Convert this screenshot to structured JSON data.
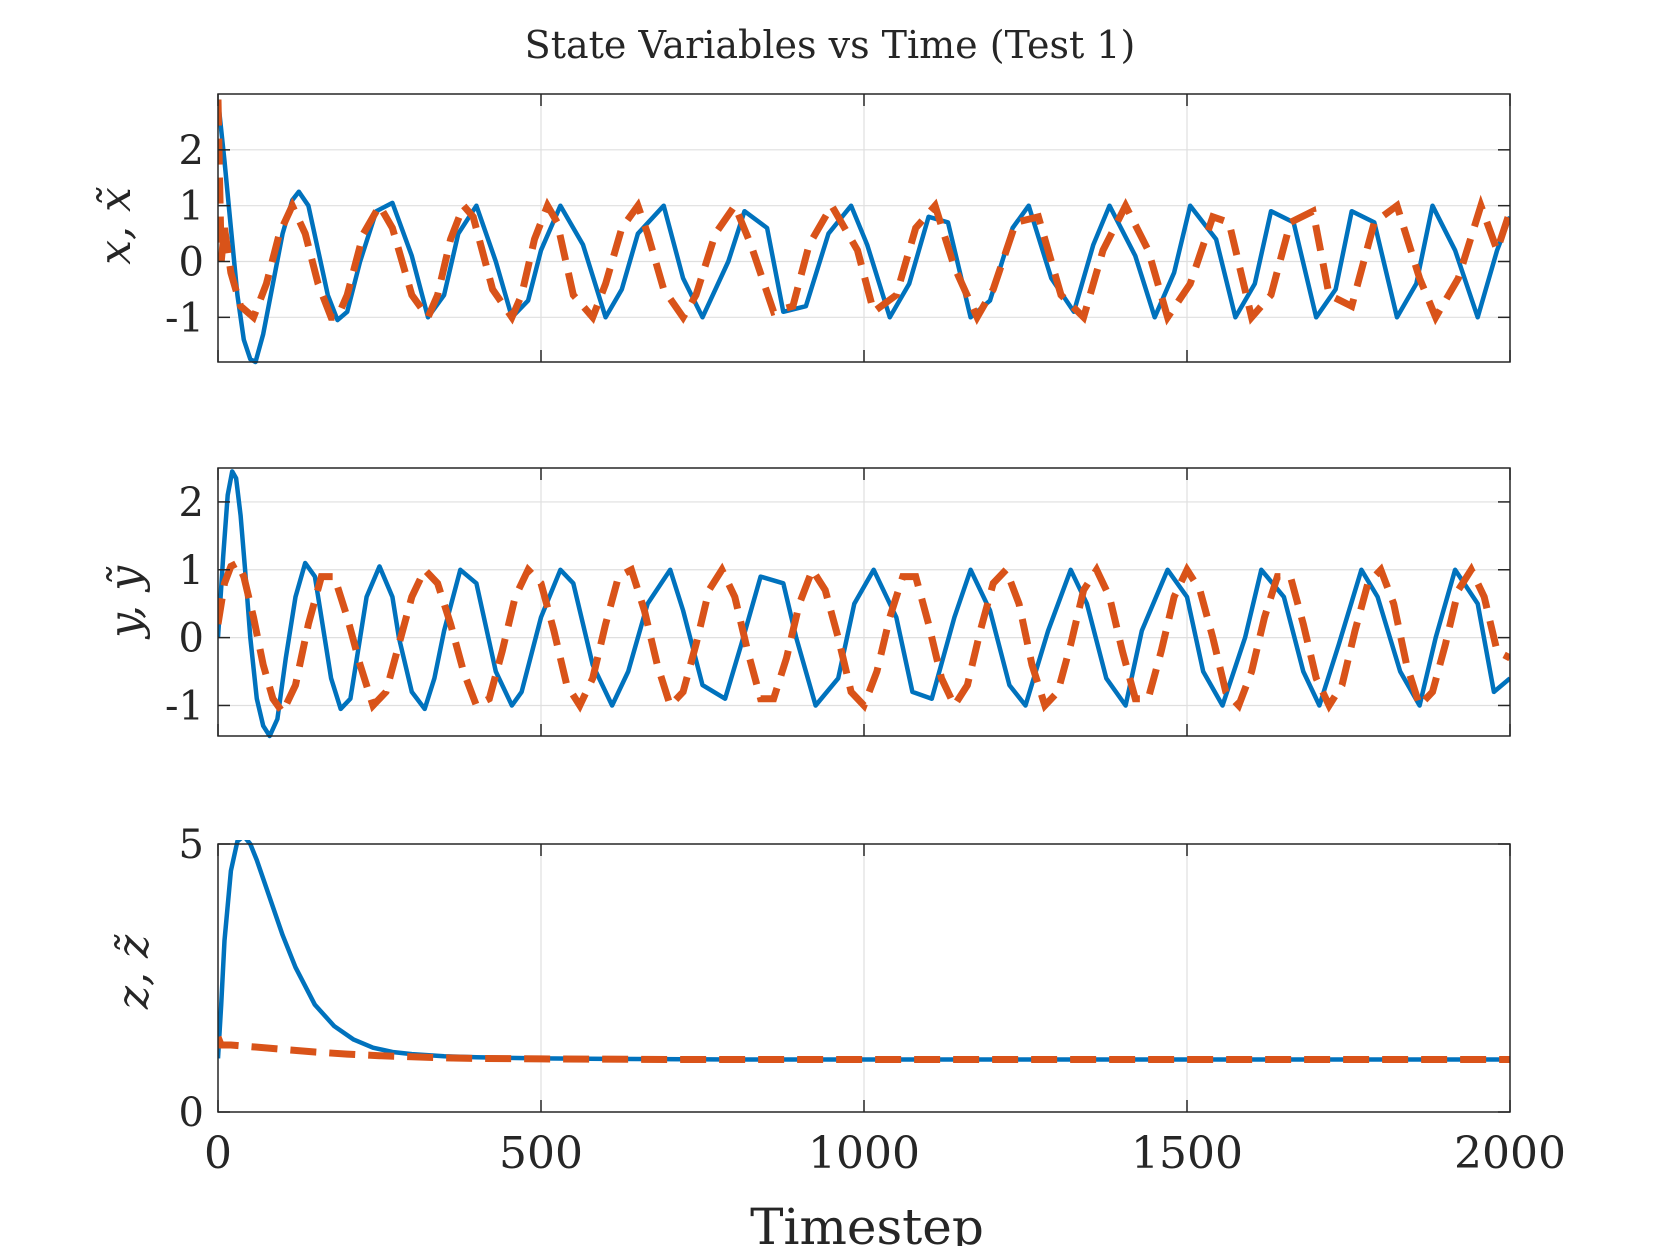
{
  "figure": {
    "title": "State Variables vs Time (Test 1)",
    "xlabel": "Timestep"
  },
  "colors": {
    "solid": "#0072BD",
    "dashed": "#D95319",
    "grid": "#dfdfdf",
    "axes": "#262626"
  },
  "chart_data": [
    {
      "type": "line",
      "title": "State Variables vs Time (Test 1)",
      "xlabel": "",
      "ylabel": "x, x̃",
      "xlim": [
        0,
        2000
      ],
      "ylim": [
        -1.8,
        3
      ],
      "xticks": [
        0,
        500,
        1000,
        1500,
        2000
      ],
      "yticks": [
        -1,
        0,
        1,
        2
      ],
      "ytick_labels": [
        "-1",
        "0",
        "1",
        "2"
      ],
      "grid": true,
      "series": [
        {
          "style": "solid",
          "color": "#0072BD",
          "x": [
            0,
            10,
            20,
            30,
            40,
            50,
            58,
            70,
            85,
            100,
            115,
            125,
            140,
            155,
            170,
            185,
            200,
            220,
            245,
            270,
            300,
            325,
            350,
            372,
            400,
            430,
            455,
            480,
            500,
            530,
            565,
            600,
            625,
            650,
            690,
            720,
            750,
            790,
            815,
            850,
            875,
            910,
            945,
            980,
            1005,
            1040,
            1070,
            1100,
            1130,
            1165,
            1195,
            1230,
            1255,
            1290,
            1325,
            1355,
            1380,
            1420,
            1450,
            1480,
            1505,
            1545,
            1575,
            1605,
            1630,
            1665,
            1700,
            1730,
            1755,
            1790,
            1825,
            1855,
            1880,
            1915,
            1950,
            1980,
            2000
          ],
          "y": [
            2.9,
            1.8,
            0.6,
            -0.6,
            -1.4,
            -1.75,
            -1.8,
            -1.3,
            -0.4,
            0.5,
            1.1,
            1.25,
            1.0,
            0.2,
            -0.6,
            -1.05,
            -0.9,
            0.0,
            0.9,
            1.05,
            0.1,
            -1.0,
            -0.6,
            0.5,
            1.0,
            0.0,
            -1.0,
            -0.7,
            0.2,
            1.0,
            0.3,
            -1.0,
            -0.5,
            0.5,
            1.0,
            -0.3,
            -1.0,
            0.0,
            0.9,
            0.6,
            -0.9,
            -0.8,
            0.5,
            1.0,
            0.3,
            -1.0,
            -0.4,
            0.8,
            0.7,
            -1.0,
            -0.7,
            0.6,
            1.0,
            -0.3,
            -0.9,
            0.3,
            1.0,
            0.1,
            -1.0,
            -0.2,
            1.0,
            0.4,
            -1.0,
            -0.4,
            0.9,
            0.7,
            -1.0,
            -0.5,
            0.9,
            0.7,
            -1.0,
            -0.4,
            1.0,
            0.2,
            -1.0,
            0.2,
            0.8
          ]
        },
        {
          "style": "dashed",
          "color": "#D95319",
          "x": [
            0,
            5,
            10,
            20,
            35,
            55,
            75,
            95,
            115,
            135,
            155,
            175,
            185,
            200,
            225,
            250,
            270,
            300,
            325,
            340,
            360,
            380,
            395,
            425,
            455,
            470,
            490,
            510,
            525,
            550,
            580,
            600,
            625,
            650,
            665,
            690,
            720,
            740,
            770,
            800,
            825,
            860,
            890,
            915,
            950,
            990,
            1015,
            1050,
            1080,
            1110,
            1140,
            1175,
            1200,
            1235,
            1270,
            1305,
            1340,
            1370,
            1405,
            1440,
            1470,
            1505,
            1540,
            1565,
            1600,
            1630,
            1660,
            1695,
            1720,
            1755,
            1790,
            1825,
            1860,
            1885,
            1920,
            1955,
            1980,
            2000
          ],
          "y": [
            2.9,
            0.0,
            0.6,
            -0.2,
            -0.8,
            -1.0,
            -0.4,
            0.5,
            1.0,
            0.5,
            -0.4,
            -1.0,
            -1.0,
            -0.6,
            0.5,
            1.0,
            0.6,
            -0.6,
            -1.0,
            -0.6,
            0.4,
            1.0,
            0.8,
            -0.5,
            -1.0,
            -0.6,
            0.4,
            1.0,
            0.7,
            -0.6,
            -1.0,
            -0.4,
            0.6,
            1.0,
            0.5,
            -0.5,
            -1.0,
            -0.6,
            0.5,
            1.0,
            0.3,
            -0.9,
            -0.8,
            0.3,
            1.0,
            0.2,
            -0.9,
            -0.6,
            0.6,
            1.0,
            -0.1,
            -1.0,
            -0.5,
            0.7,
            0.8,
            -0.6,
            -1.0,
            0.2,
            1.0,
            0.2,
            -1.0,
            -0.4,
            0.8,
            0.7,
            -1.0,
            -0.6,
            0.7,
            0.9,
            -0.6,
            -0.8,
            0.7,
            1.0,
            -0.3,
            -1.0,
            -0.3,
            1.0,
            0.2,
            0.9
          ]
        }
      ]
    },
    {
      "type": "line",
      "title": "",
      "xlabel": "",
      "ylabel": "y, ỹ",
      "xlim": [
        0,
        2000
      ],
      "ylim": [
        -1.45,
        2.5
      ],
      "xticks": [
        0,
        500,
        1000,
        1500,
        2000
      ],
      "yticks": [
        -1,
        0,
        1,
        2
      ],
      "ytick_labels": [
        "-1",
        "0",
        "1",
        "2"
      ],
      "grid": true,
      "series": [
        {
          "style": "solid",
          "color": "#0072BD",
          "x": [
            0,
            8,
            15,
            22,
            28,
            35,
            42,
            50,
            60,
            70,
            80,
            92,
            105,
            120,
            135,
            150,
            160,
            175,
            190,
            205,
            215,
            230,
            250,
            270,
            280,
            300,
            320,
            335,
            350,
            375,
            400,
            430,
            455,
            470,
            500,
            530,
            550,
            580,
            610,
            635,
            665,
            700,
            720,
            750,
            785,
            810,
            840,
            875,
            895,
            925,
            960,
            985,
            1015,
            1050,
            1075,
            1105,
            1140,
            1165,
            1195,
            1225,
            1250,
            1285,
            1320,
            1345,
            1375,
            1405,
            1430,
            1470,
            1500,
            1525,
            1555,
            1590,
            1615,
            1650,
            1680,
            1705,
            1735,
            1770,
            1795,
            1830,
            1860,
            1885,
            1915,
            1950,
            1975,
            2000
          ],
          "y": [
            0.0,
            1.2,
            2.1,
            2.45,
            2.35,
            1.8,
            1.0,
            0.0,
            -0.9,
            -1.3,
            -1.45,
            -1.2,
            -0.3,
            0.6,
            1.1,
            0.9,
            0.3,
            -0.6,
            -1.05,
            -0.9,
            -0.3,
            0.6,
            1.05,
            0.6,
            0.0,
            -0.8,
            -1.05,
            -0.6,
            0.1,
            1.0,
            0.8,
            -0.5,
            -1.0,
            -0.8,
            0.3,
            1.0,
            0.8,
            -0.4,
            -1.0,
            -0.5,
            0.5,
            1.0,
            0.4,
            -0.7,
            -0.9,
            -0.1,
            0.9,
            0.8,
            0.0,
            -1.0,
            -0.6,
            0.5,
            1.0,
            0.3,
            -0.8,
            -0.9,
            0.3,
            1.0,
            0.4,
            -0.7,
            -1.0,
            0.1,
            1.0,
            0.5,
            -0.6,
            -1.0,
            0.1,
            1.0,
            0.6,
            -0.5,
            -1.0,
            0.0,
            1.0,
            0.6,
            -0.5,
            -1.0,
            -0.1,
            1.0,
            0.6,
            -0.5,
            -1.0,
            0.0,
            1.0,
            0.5,
            -0.8,
            -0.6
          ]
        },
        {
          "style": "dashed",
          "color": "#D95319",
          "x": [
            0,
            10,
            20,
            30,
            40,
            55,
            70,
            85,
            100,
            120,
            140,
            160,
            180,
            200,
            220,
            240,
            260,
            280,
            300,
            320,
            340,
            360,
            380,
            400,
            420,
            440,
            460,
            480,
            500,
            520,
            540,
            560,
            580,
            600,
            620,
            640,
            660,
            680,
            700,
            720,
            740,
            760,
            780,
            800,
            820,
            840,
            860,
            880,
            900,
            920,
            940,
            960,
            980,
            1000,
            1020,
            1040,
            1060,
            1080,
            1100,
            1120,
            1140,
            1160,
            1180,
            1200,
            1220,
            1240,
            1260,
            1280,
            1300,
            1320,
            1340,
            1360,
            1380,
            1400,
            1420,
            1440,
            1460,
            1480,
            1500,
            1520,
            1540,
            1560,
            1580,
            1600,
            1620,
            1640,
            1660,
            1680,
            1700,
            1720,
            1740,
            1760,
            1780,
            1800,
            1820,
            1840,
            1860,
            1880,
            1900,
            1920,
            1940,
            1960,
            1980,
            2000
          ],
          "y": [
            0.2,
            0.8,
            1.05,
            1.1,
            0.9,
            0.3,
            -0.4,
            -0.9,
            -1.1,
            -0.7,
            0.2,
            0.9,
            0.9,
            0.3,
            -0.4,
            -1.0,
            -0.8,
            -0.1,
            0.6,
            1.0,
            0.8,
            0.2,
            -0.5,
            -1.0,
            -0.9,
            -0.2,
            0.6,
            1.0,
            0.8,
            0.1,
            -0.7,
            -1.0,
            -0.6,
            0.2,
            0.9,
            1.0,
            0.4,
            -0.4,
            -1.0,
            -0.8,
            -0.1,
            0.7,
            1.0,
            0.6,
            -0.2,
            -0.9,
            -0.9,
            -0.3,
            0.5,
            1.0,
            0.7,
            0.0,
            -0.8,
            -1.0,
            -0.5,
            0.3,
            0.9,
            0.9,
            0.2,
            -0.6,
            -1.0,
            -0.7,
            0.1,
            0.8,
            1.0,
            0.5,
            -0.4,
            -1.0,
            -0.8,
            -0.1,
            0.7,
            1.0,
            0.6,
            -0.2,
            -0.9,
            -0.9,
            -0.2,
            0.6,
            1.0,
            0.7,
            0.0,
            -0.8,
            -1.0,
            -0.5,
            0.3,
            0.9,
            0.9,
            0.2,
            -0.6,
            -1.0,
            -0.7,
            0.1,
            0.8,
            1.0,
            0.5,
            -0.4,
            -1.0,
            -0.8,
            -0.1,
            0.7,
            1.0,
            0.6,
            -0.2,
            -0.3
          ]
        }
      ]
    },
    {
      "type": "line",
      "title": "",
      "xlabel": "Timestep",
      "ylabel": "z, z̃",
      "xlim": [
        0,
        2000
      ],
      "ylim": [
        0,
        5
      ],
      "xticks": [
        0,
        500,
        1000,
        1500,
        2000
      ],
      "xtick_labels": [
        "0",
        "500",
        "1000",
        "1500",
        "2000"
      ],
      "yticks": [
        0,
        5
      ],
      "ytick_labels": [
        "0",
        "5"
      ],
      "grid": true,
      "series": [
        {
          "style": "solid",
          "color": "#0072BD",
          "x": [
            0,
            5,
            10,
            20,
            30,
            40,
            50,
            60,
            80,
            100,
            120,
            150,
            180,
            210,
            240,
            270,
            300,
            350,
            400,
            500,
            600,
            800,
            1000,
            1500,
            2000
          ],
          "y": [
            1.0,
            2.0,
            3.2,
            4.5,
            5.05,
            5.15,
            5.0,
            4.7,
            4.0,
            3.3,
            2.7,
            2.0,
            1.6,
            1.35,
            1.2,
            1.12,
            1.08,
            1.04,
            1.02,
            1.0,
            0.99,
            0.98,
            0.98,
            0.98,
            0.98
          ]
        },
        {
          "style": "dashed",
          "color": "#D95319",
          "x": [
            0,
            5,
            20,
            50,
            100,
            150,
            200,
            250,
            300,
            350,
            400,
            500,
            700,
            1000,
            1500,
            2000
          ],
          "y": [
            1.4,
            1.25,
            1.25,
            1.22,
            1.17,
            1.12,
            1.08,
            1.05,
            1.03,
            1.01,
            1.0,
            0.99,
            0.98,
            0.98,
            0.98,
            0.98
          ]
        }
      ]
    }
  ]
}
